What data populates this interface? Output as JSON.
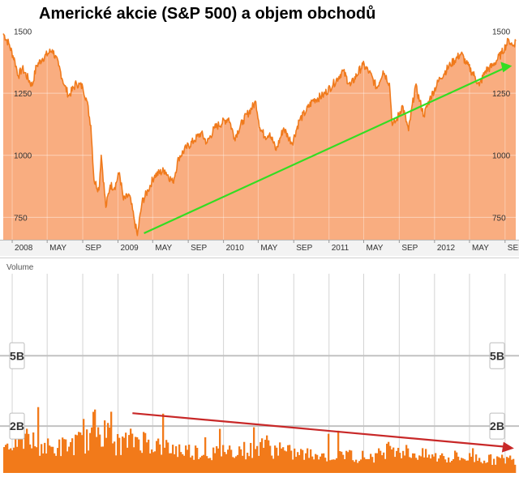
{
  "colors": {
    "price_fill": "#f9ad80",
    "price_line": "#f07a1c",
    "volume_fill": "#f27a1a",
    "green_arrow": "#33dd22",
    "red_arrow": "#c82828",
    "grid": "#d4d4d4",
    "grid_strong": "#c2c2c2",
    "axis_text": "#333333",
    "axis_bg": "#f3f3f3"
  },
  "chart_data": [
    {
      "type": "area",
      "title": "Americké akcie (S&P 500) a objem obchodů",
      "xlabel": "",
      "ylabel": "",
      "x_tick_labels": [
        "2008",
        "MAY",
        "SEP",
        "2009",
        "MAY",
        "SEP",
        "2010",
        "MAY",
        "SEP",
        "2011",
        "MAY",
        "SEP",
        "2012",
        "MAY",
        "SEP"
      ],
      "y_tick_labels": [
        "1500",
        "1250",
        "1000",
        "750"
      ],
      "y_ticks": [
        1500,
        1250,
        1000,
        750
      ],
      "ylim": [
        660,
        1560
      ],
      "xlim": [
        "2007-12-01",
        "2012-10-08"
      ],
      "grid": true,
      "series": [
        {
          "x": [
            "2007-12-01",
            "2007-12-20",
            "2008-01-10",
            "2008-01-22",
            "2008-02-05",
            "2008-03-10",
            "2008-03-25",
            "2008-04-15",
            "2008-05-19",
            "2008-06-10",
            "2008-06-30",
            "2008-07-15",
            "2008-08-10",
            "2008-09-01",
            "2008-09-15",
            "2008-09-29",
            "2008-10-10",
            "2008-10-27",
            "2008-11-04",
            "2008-11-20",
            "2008-12-05",
            "2008-12-20",
            "2009-01-06",
            "2009-01-20",
            "2009-02-09",
            "2009-02-25",
            "2009-03-09",
            "2009-03-25",
            "2009-04-15",
            "2009-05-08",
            "2009-06-12",
            "2009-07-10",
            "2009-07-30",
            "2009-08-25",
            "2009-09-22",
            "2009-10-15",
            "2009-11-05",
            "2009-12-01",
            "2010-01-19",
            "2010-02-08",
            "2010-03-10",
            "2010-04-23",
            "2010-05-07",
            "2010-05-25",
            "2010-06-10",
            "2010-07-02",
            "2010-07-28",
            "2010-08-12",
            "2010-08-27",
            "2010-09-20",
            "2010-10-15",
            "2010-11-05",
            "2010-12-10",
            "2011-01-15",
            "2011-02-18",
            "2011-03-16",
            "2011-04-28",
            "2011-05-20",
            "2011-06-16",
            "2011-07-07",
            "2011-07-29",
            "2011-08-08",
            "2011-08-22",
            "2011-09-12",
            "2011-10-03",
            "2011-10-27",
            "2011-11-25",
            "2011-12-15",
            "2012-01-20",
            "2012-02-25",
            "2012-04-02",
            "2012-04-20",
            "2012-05-18",
            "2012-06-04",
            "2012-06-25",
            "2012-07-20",
            "2012-08-20",
            "2012-09-14",
            "2012-09-28",
            "2012-10-08"
          ],
          "y": [
            1490,
            1450,
            1380,
            1320,
            1350,
            1280,
            1360,
            1390,
            1425,
            1360,
            1280,
            1240,
            1290,
            1275,
            1220,
            1120,
            900,
            860,
            1000,
            790,
            880,
            870,
            930,
            820,
            840,
            750,
            677,
            810,
            860,
            920,
            940,
            890,
            990,
            1030,
            1060,
            1090,
            1050,
            1110,
            1150,
            1070,
            1140,
            1215,
            1110,
            1075,
            1090,
            1020,
            1110,
            1075,
            1050,
            1140,
            1180,
            1220,
            1240,
            1285,
            1340,
            1280,
            1365,
            1335,
            1270,
            1340,
            1290,
            1120,
            1140,
            1200,
            1099,
            1280,
            1160,
            1225,
            1310,
            1365,
            1410,
            1370,
            1320,
            1280,
            1340,
            1360,
            1410,
            1465,
            1440,
            1460
          ]
        }
      ]
    },
    {
      "type": "bar",
      "title": "Volume",
      "y_tick_labels": [
        "5B",
        "2B"
      ],
      "y_ticks": [
        5,
        2
      ],
      "ylim": [
        0,
        8.5
      ],
      "xlim": [
        "2007-12-01",
        "2012-10-08"
      ],
      "grid": true,
      "series": [
        {
          "x": [
            "2007-12-01",
            "2008-01-22",
            "2008-03-17",
            "2008-05-15",
            "2008-07-15",
            "2008-09-15",
            "2008-10-10",
            "2008-11-20",
            "2008-12-20",
            "2009-01-20",
            "2009-03-09",
            "2009-05-08",
            "2009-07-10",
            "2009-09-22",
            "2009-12-01",
            "2010-02-08",
            "2010-04-23",
            "2010-05-07",
            "2010-06-10",
            "2010-08-27",
            "2010-10-15",
            "2010-12-10",
            "2011-02-18",
            "2011-04-28",
            "2011-06-16",
            "2011-08-08",
            "2011-09-12",
            "2011-11-25",
            "2012-01-20",
            "2012-03-15",
            "2012-05-18",
            "2012-07-20",
            "2012-09-14",
            "2012-10-08"
          ],
          "values": [
            1.2,
            1.7,
            1.4,
            1.1,
            1.3,
            1.5,
            2.2,
            1.8,
            1.3,
            1.4,
            1.6,
            1.3,
            1.1,
            1.0,
            0.9,
            1.1,
            1.0,
            1.6,
            1.1,
            0.9,
            0.85,
            0.8,
            0.85,
            0.75,
            0.8,
            1.3,
            1.0,
            0.8,
            0.7,
            0.7,
            0.7,
            0.6,
            0.65,
            0.6
          ]
        }
      ]
    }
  ]
}
